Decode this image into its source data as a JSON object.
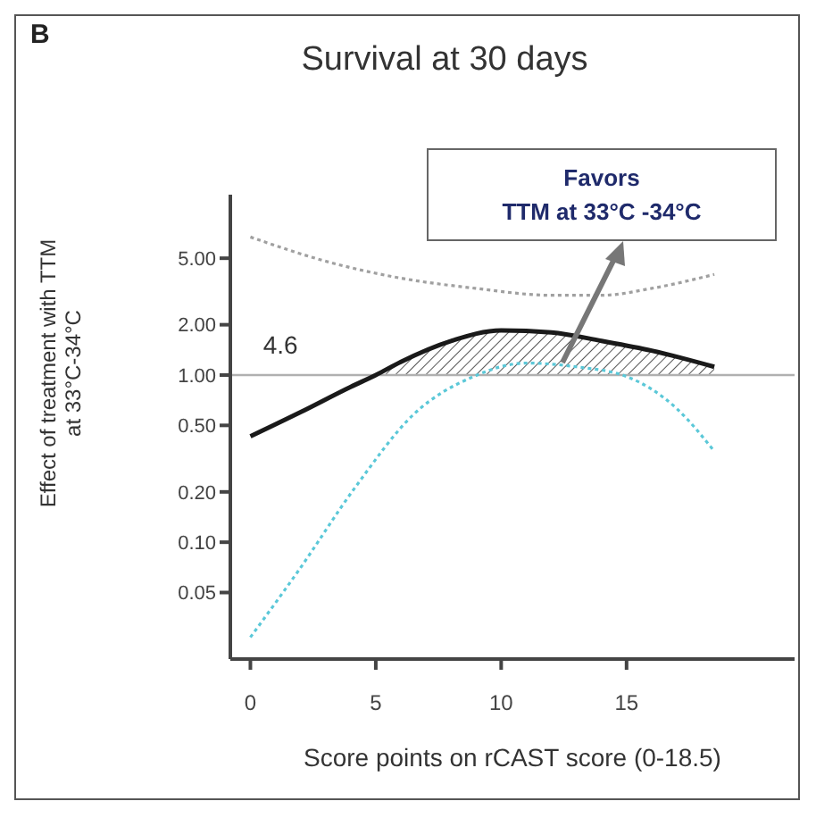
{
  "chart_data": {
    "type": "line",
    "title": "Survival at  30  days",
    "xlabel": "Score points on rCAST score (0-18.5)",
    "ylabel": "Effect of treatment with TTM\nat 33°C-34°C",
    "annotations": [
      "B",
      {
        "text": "4.6",
        "x": 4.6,
        "y": 1
      },
      "Favors\nTTM at 33°C -34°C"
    ],
    "xlim": [
      -0.8,
      21.7
    ],
    "xticks": [
      0,
      5,
      10,
      15
    ],
    "ylim": [
      0.02,
      12
    ],
    "log": true,
    "yticks": [
      {
        "value": 0.05,
        "label": "0.05"
      },
      {
        "value": 0.1,
        "label": "0.10"
      },
      {
        "value": 0.2,
        "label": "0.20"
      },
      {
        "value": 0.5,
        "label": "0.50"
      },
      {
        "value": 1,
        "label": "1.00"
      },
      {
        "value": 2,
        "label": "2.00"
      },
      {
        "value": 5,
        "label": "5.00"
      }
    ],
    "marker": "none",
    "ref_lines": [
      {
        "axis": "y",
        "value": 1,
        "color": "#b0b0b0"
      }
    ],
    "series": [
      {
        "type": "area",
        "color": "#555555",
        "x": [
          4.8,
          6,
          8,
          10,
          12,
          14,
          16,
          18.5
        ],
        "values": [
          1.0,
          1.2,
          1.6,
          1.85,
          1.8,
          1.6,
          1.4,
          1.12
        ]
      },
      {
        "color": "#a0a0a0",
        "line_style": "dotted",
        "x": [
          0,
          3,
          6,
          9,
          12,
          14,
          16,
          18.5
        ],
        "values": [
          6.7,
          4.8,
          3.8,
          3.3,
          3.0,
          3.0,
          3.3,
          4.0
        ]
      },
      {
        "color": "#1a1a1a",
        "line_style": "solid",
        "x": [
          0,
          2,
          4,
          5,
          6,
          8,
          10,
          12,
          14,
          16,
          18.5
        ],
        "values": [
          0.43,
          0.6,
          0.85,
          1.0,
          1.2,
          1.6,
          1.85,
          1.8,
          1.6,
          1.4,
          1.12
        ]
      },
      {
        "color": "#5bc8d8",
        "line_style": "dotted",
        "x": [
          0,
          1.9,
          4.2,
          6.5,
          8.9,
          11,
          13,
          15,
          17,
          18.5
        ],
        "values": [
          0.027,
          0.067,
          0.215,
          0.58,
          0.98,
          1.18,
          1.12,
          0.98,
          0.63,
          0.35
        ]
      }
    ]
  }
}
